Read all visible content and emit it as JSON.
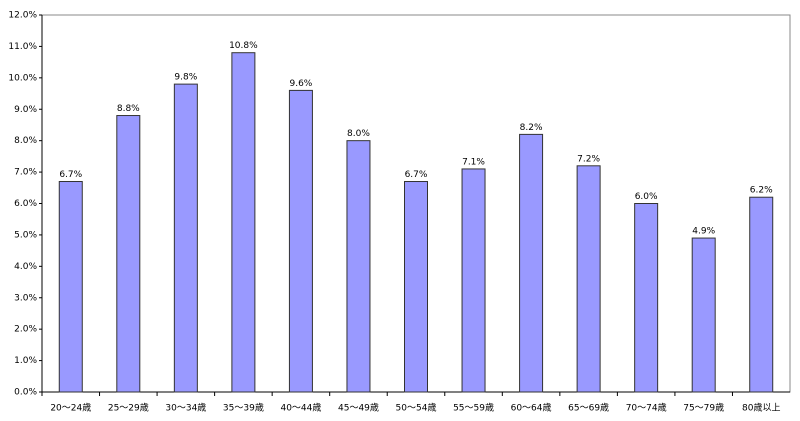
{
  "chart_data": {
    "type": "bar",
    "categories": [
      "20～24歳",
      "25～29歳",
      "30～34歳",
      "35～39歳",
      "40～44歳",
      "45～49歳",
      "50～54歳",
      "55～59歳",
      "60～64歳",
      "65～69歳",
      "70～74歳",
      "75～79歳",
      "80歳以上"
    ],
    "values": [
      6.7,
      8.8,
      9.8,
      10.8,
      9.6,
      8.0,
      6.7,
      7.1,
      8.2,
      7.2,
      6.0,
      4.9,
      6.2
    ],
    "value_labels": [
      "6.7%",
      "8.8%",
      "9.8%",
      "10.8%",
      "9.6%",
      "8.0%",
      "6.7%",
      "7.1%",
      "8.2%",
      "7.2%",
      "6.0%",
      "4.9%",
      "6.2%"
    ],
    "color": "#9999ff",
    "ylim": [
      0,
      12
    ],
    "yticks": [
      {
        "value": 0,
        "label": "0.0%"
      },
      {
        "value": 1,
        "label": "1.0%"
      },
      {
        "value": 2,
        "label": "2.0%"
      },
      {
        "value": 3,
        "label": "3.0%"
      },
      {
        "value": 4,
        "label": "4.0%"
      },
      {
        "value": 5,
        "label": "5.0%"
      },
      {
        "value": 6,
        "label": "6.0%"
      },
      {
        "value": 7,
        "label": "7.0%"
      },
      {
        "value": 8,
        "label": "8.0%"
      },
      {
        "value": 9,
        "label": "9.0%"
      },
      {
        "value": 10,
        "label": "10.0%"
      },
      {
        "value": 11,
        "label": "11.0%"
      },
      {
        "value": 12,
        "label": "12.0%"
      }
    ],
    "grid": false
  }
}
